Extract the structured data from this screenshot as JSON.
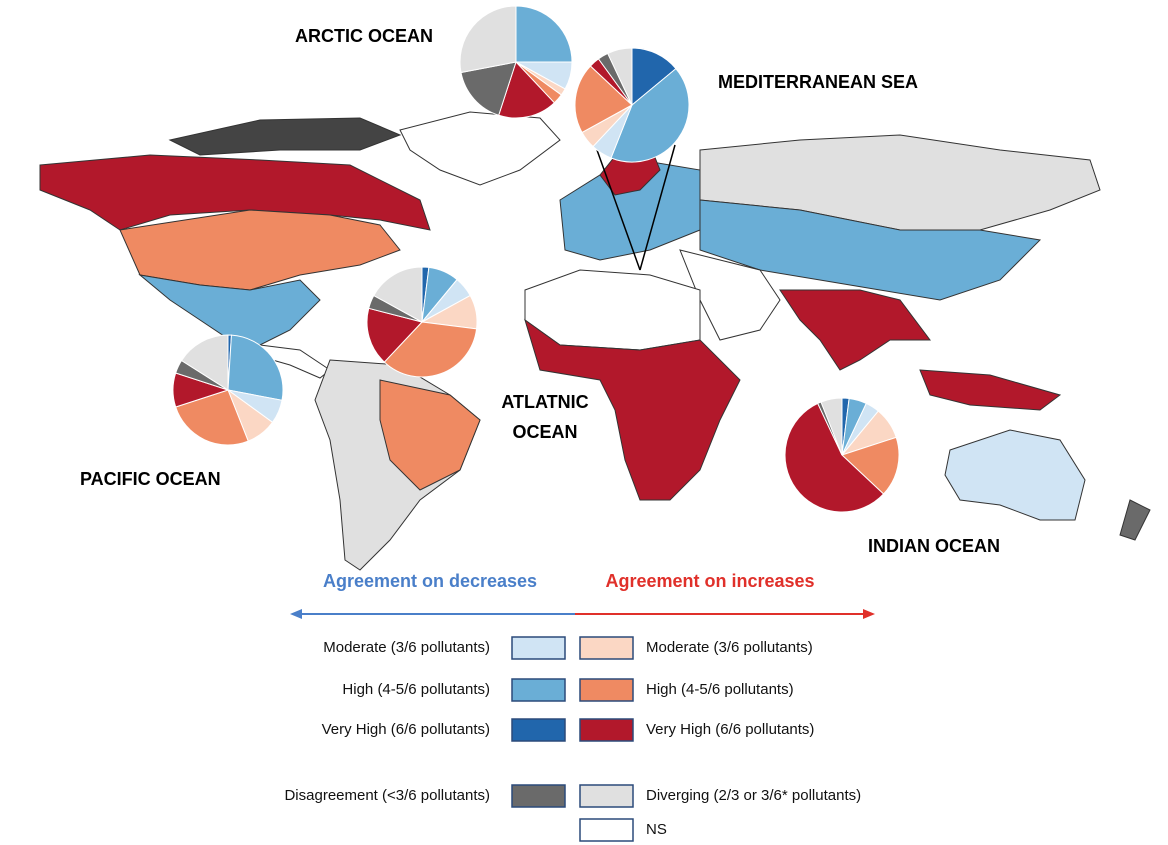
{
  "ocean_labels": {
    "arctic": "ARCTIC OCEAN",
    "mediterranean": "MEDITERRANEAN SEA",
    "atlantic": [
      "ATLATNIC",
      "OCEAN"
    ],
    "pacific": "PACIFIC OCEAN",
    "indian": "INDIAN OCEAN"
  },
  "legend": {
    "decreases_title": "Agreement on decreases",
    "increases_title": "Agreement on increases",
    "classes": [
      {
        "label": "Moderate (3/6 pollutants)",
        "color": "#d0e4f4"
      },
      {
        "label": "High (4-5/6 pollutants)",
        "color": "#6aaed6"
      },
      {
        "label": "Very High (6/6 pollutants)",
        "color": "#2166ac"
      },
      {
        "label": "Moderate (3/6 pollutants)",
        "color": "#fbd7c4"
      },
      {
        "label": "High (4-5/6 pollutants)",
        "color": "#ef8a62"
      },
      {
        "label": "Very High (6/6 pollutants)",
        "color": "#b2182b"
      },
      {
        "label": "Disagreement (<3/6 pollutants)",
        "color": "#6a6a6a"
      },
      {
        "label": "Diverging (2/3 or 3/6* pollutants)",
        "color": "#e0e0e0"
      },
      {
        "label": "NS",
        "color": "#ffffff"
      }
    ]
  },
  "pies": [
    {
      "ocean": "arctic",
      "values": [
        8,
        25,
        0,
        2,
        3,
        17,
        17,
        28,
        0
      ]
    },
    {
      "ocean": "mediterranean",
      "values": [
        6,
        42,
        14,
        5,
        20,
        3,
        3,
        7,
        0
      ]
    },
    {
      "ocean": "atlantic",
      "values": [
        6,
        9,
        2,
        10,
        35,
        17,
        4,
        17,
        0
      ]
    },
    {
      "ocean": "pacific",
      "values": [
        7,
        27,
        1,
        9,
        26,
        10,
        4,
        16,
        0
      ]
    },
    {
      "ocean": "indian",
      "values": [
        4,
        5,
        2,
        9,
        17,
        56,
        1,
        6,
        0
      ]
    }
  ]
}
